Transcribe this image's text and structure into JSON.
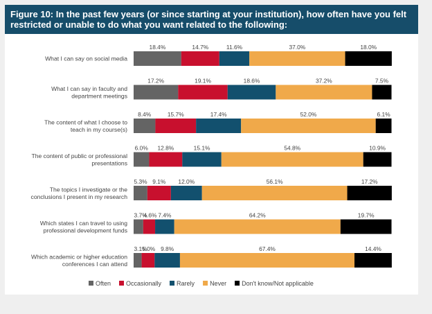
{
  "figure_title": "Figure 10: In the past few years (or since starting at your institution), how often have you felt restricted or unable to do what you want related to the following:",
  "chart_data": {
    "type": "bar",
    "orientation": "horizontal",
    "stacked": true,
    "xlim": [
      0,
      100
    ],
    "legend_position": "bottom",
    "grid": false,
    "categories": [
      [
        "What I can say on social media"
      ],
      [
        "What I can say in faculty and",
        "department meetings"
      ],
      [
        "The content of what I choose to",
        "teach in my course(s)"
      ],
      [
        "The content of public or professional",
        "presentations"
      ],
      [
        "The topics I investigate or the",
        "conclusions I present in my research"
      ],
      [
        "Which states I can travel to using",
        "professional development funds"
      ],
      [
        "Which academic or higher education",
        "conferences I can attend"
      ]
    ],
    "series": [
      {
        "name": "Often",
        "color": "#646464",
        "values": [
          18.4,
          17.2,
          8.4,
          6.0,
          5.3,
          3.7,
          3.1
        ]
      },
      {
        "name": "Occasionally",
        "color": "#c8102e",
        "values": [
          14.7,
          19.1,
          15.7,
          12.8,
          9.1,
          4.6,
          5.0
        ]
      },
      {
        "name": "Rarely",
        "color": "#12506e",
        "values": [
          11.6,
          18.6,
          17.4,
          15.1,
          12.0,
          7.4,
          9.8
        ]
      },
      {
        "name": "Never",
        "color": "#f0a94a",
        "values": [
          37.0,
          37.2,
          52.0,
          54.8,
          56.1,
          64.2,
          67.4
        ]
      },
      {
        "name": "Don't know/Not applicable",
        "color": "#000000",
        "values": [
          18.0,
          7.5,
          6.1,
          10.9,
          17.2,
          19.7,
          14.4
        ]
      }
    ]
  }
}
